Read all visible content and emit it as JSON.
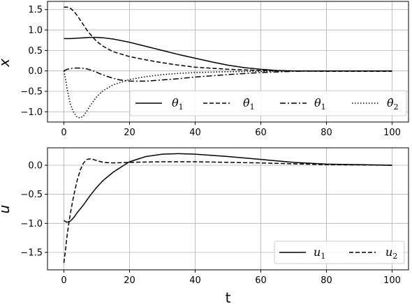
{
  "chart_data": [
    {
      "type": "line",
      "xlabel": "",
      "ylabel": "x",
      "xlim": [
        -5,
        105
      ],
      "ylim": [
        -1.25,
        1.7
      ],
      "xticks": [
        "0",
        "20",
        "40",
        "60",
        "80",
        "100"
      ],
      "yticks": [
        "1.5",
        "1.0",
        "0.5",
        "0.0",
        "−0.5",
        "−1.0"
      ],
      "grid": true,
      "legend_position": "lower-right",
      "series": [
        {
          "name": "θ1",
          "style": "solid",
          "x": [
            0,
            2,
            4,
            6,
            8,
            10,
            12,
            15,
            20,
            25,
            30,
            35,
            40,
            45,
            50,
            55,
            60,
            65,
            70,
            80,
            90,
            100
          ],
          "y": [
            0.79,
            0.79,
            0.8,
            0.81,
            0.82,
            0.82,
            0.81,
            0.78,
            0.7,
            0.6,
            0.5,
            0.4,
            0.31,
            0.22,
            0.14,
            0.08,
            0.04,
            0.01,
            0.0,
            0.0,
            0.0,
            0.0
          ]
        },
        {
          "name": "θ̇1",
          "style": "dashed",
          "x": [
            0,
            1,
            2,
            3,
            4,
            5,
            6,
            7,
            8,
            10,
            12,
            15,
            20,
            25,
            30,
            35,
            40,
            50,
            60,
            70,
            80,
            90,
            100
          ],
          "y": [
            1.56,
            1.56,
            1.53,
            1.46,
            1.36,
            1.24,
            1.12,
            1.0,
            0.9,
            0.72,
            0.6,
            0.47,
            0.35,
            0.27,
            0.2,
            0.14,
            0.09,
            0.04,
            0.01,
            0.0,
            -0.01,
            -0.01,
            -0.01
          ]
        },
        {
          "name": "θ1",
          "style": "dashdot",
          "x": [
            0,
            1,
            2,
            3,
            5,
            7,
            9,
            11,
            13,
            15,
            17,
            20,
            25,
            30,
            35,
            40,
            50,
            60,
            70,
            80,
            90,
            100
          ],
          "y": [
            0.0,
            0.04,
            0.06,
            0.07,
            0.07,
            0.05,
            0.0,
            -0.07,
            -0.13,
            -0.18,
            -0.22,
            -0.25,
            -0.25,
            -0.22,
            -0.19,
            -0.15,
            -0.09,
            -0.04,
            -0.01,
            0.0,
            0.0,
            0.0
          ]
        },
        {
          "name": "θ̇2",
          "style": "dotted",
          "x": [
            0,
            0.5,
            1,
            1.5,
            2,
            3,
            4,
            5,
            6,
            7,
            8,
            10,
            12,
            15,
            20,
            25,
            30,
            35,
            40,
            50,
            60,
            70,
            80,
            90,
            100
          ],
          "y": [
            0.0,
            -0.2,
            -0.45,
            -0.65,
            -0.82,
            -1.02,
            -1.13,
            -1.15,
            -1.1,
            -0.98,
            -0.85,
            -0.63,
            -0.48,
            -0.34,
            -0.21,
            -0.14,
            -0.09,
            -0.06,
            -0.04,
            -0.02,
            -0.01,
            0.0,
            0.0,
            0.0,
            0.0
          ]
        }
      ]
    },
    {
      "type": "line",
      "xlabel": "t",
      "ylabel": "u",
      "xlim": [
        -5,
        105
      ],
      "ylim": [
        -1.8,
        0.3
      ],
      "xticks": [
        "0",
        "20",
        "40",
        "60",
        "80",
        "100"
      ],
      "yticks": [
        "0.0",
        "−0.5",
        "−1.0",
        "−1.5"
      ],
      "grid": true,
      "legend_position": "lower-right",
      "series": [
        {
          "name": "u1",
          "style": "solid",
          "x": [
            0,
            0.5,
            1,
            2,
            3,
            4,
            6,
            8,
            10,
            12,
            15,
            18,
            20,
            25,
            30,
            35,
            40,
            50,
            60,
            70,
            80,
            90,
            100
          ],
          "y": [
            -0.95,
            -0.97,
            -0.98,
            -0.96,
            -0.9,
            -0.82,
            -0.68,
            -0.52,
            -0.38,
            -0.26,
            -0.12,
            -0.01,
            0.06,
            0.15,
            0.19,
            0.2,
            0.19,
            0.15,
            0.1,
            0.05,
            0.02,
            0.01,
            0.0
          ]
        },
        {
          "name": "u2",
          "style": "dashed",
          "x": [
            0,
            0.5,
            1,
            1.5,
            2,
            3,
            4,
            5,
            6,
            7,
            8,
            9,
            10,
            12,
            15,
            20,
            30,
            40,
            60,
            80,
            100
          ],
          "y": [
            -1.68,
            -1.45,
            -1.2,
            -1.0,
            -0.82,
            -0.52,
            -0.27,
            -0.08,
            0.04,
            0.1,
            0.11,
            0.1,
            0.08,
            0.05,
            0.04,
            0.05,
            0.06,
            0.06,
            0.04,
            0.01,
            0.0
          ]
        }
      ]
    }
  ]
}
